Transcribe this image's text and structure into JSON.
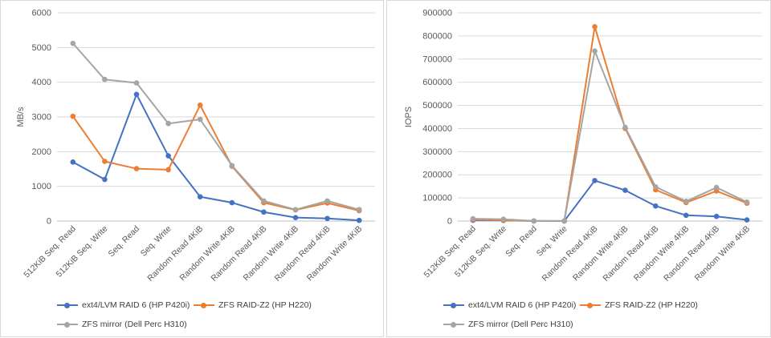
{
  "chart_data": [
    {
      "type": "line",
      "title": "",
      "xlabel": "",
      "ylabel": "MB/s",
      "ylim": [
        0,
        6000
      ],
      "yticks": [
        "0",
        "1000",
        "2000",
        "3000",
        "4000",
        "5000",
        "6000"
      ],
      "grid": true,
      "legend": "bottom",
      "categories": [
        "512KiB Seq. Read",
        "512KiB Seq. Write",
        "Seq. Read",
        "Seq. Write",
        "Random Read 4KiB",
        "Random Write 4KiB",
        "Random Read 4KiB",
        "Random Write 4KiB",
        "Random Read 4KiB",
        "Random Write 4KiB"
      ],
      "series": [
        {
          "name": "ext4/LVM RAID 6 (HP P420i)",
          "color": "#4472c4",
          "values": [
            1700,
            1200,
            3650,
            1880,
            700,
            530,
            260,
            100,
            75,
            20
          ]
        },
        {
          "name": "ZFS RAID-Z2 (HP H220)",
          "color": "#ed7d31",
          "values": [
            3020,
            1720,
            1510,
            1480,
            3340,
            1580,
            530,
            320,
            520,
            300
          ]
        },
        {
          "name": "ZFS mirror (Dell Perc H310)",
          "color": "#a5a5a5",
          "values": [
            5120,
            4080,
            3980,
            2810,
            2930,
            1600,
            580,
            330,
            580,
            330
          ]
        }
      ]
    },
    {
      "type": "line",
      "title": "",
      "xlabel": "",
      "ylabel": "IOPS",
      "ylim": [
        0,
        900000
      ],
      "yticks": [
        "0",
        "100000",
        "200000",
        "300000",
        "400000",
        "500000",
        "600000",
        "700000",
        "800000",
        "900000"
      ],
      "grid": true,
      "legend": "bottom",
      "categories": [
        "512KiB Seq. Read",
        "512KiB Seq. Write",
        "Seq. Read",
        "Seq. Write",
        "Random Read 4KiB",
        "Random Write 4KiB",
        "Random Read 4KiB",
        "Random Write 4KiB",
        "Random Read 4KiB",
        "Random Write 4KiB"
      ],
      "series": [
        {
          "name": "ext4/LVM RAID 6 (HP P420i)",
          "color": "#4472c4",
          "values": [
            3400,
            2400,
            400,
            200,
            175000,
            133000,
            65000,
            25000,
            20000,
            5000
          ]
        },
        {
          "name": "ZFS RAID-Z2 (HP H220)",
          "color": "#ed7d31",
          "values": [
            6000,
            3500,
            300,
            300,
            840000,
            400000,
            135000,
            80000,
            130000,
            77000
          ]
        },
        {
          "name": "ZFS mirror (Dell Perc H310)",
          "color": "#a5a5a5",
          "values": [
            10000,
            8000,
            400,
            300,
            735000,
            405000,
            148000,
            85000,
            145000,
            82000
          ]
        }
      ]
    }
  ]
}
